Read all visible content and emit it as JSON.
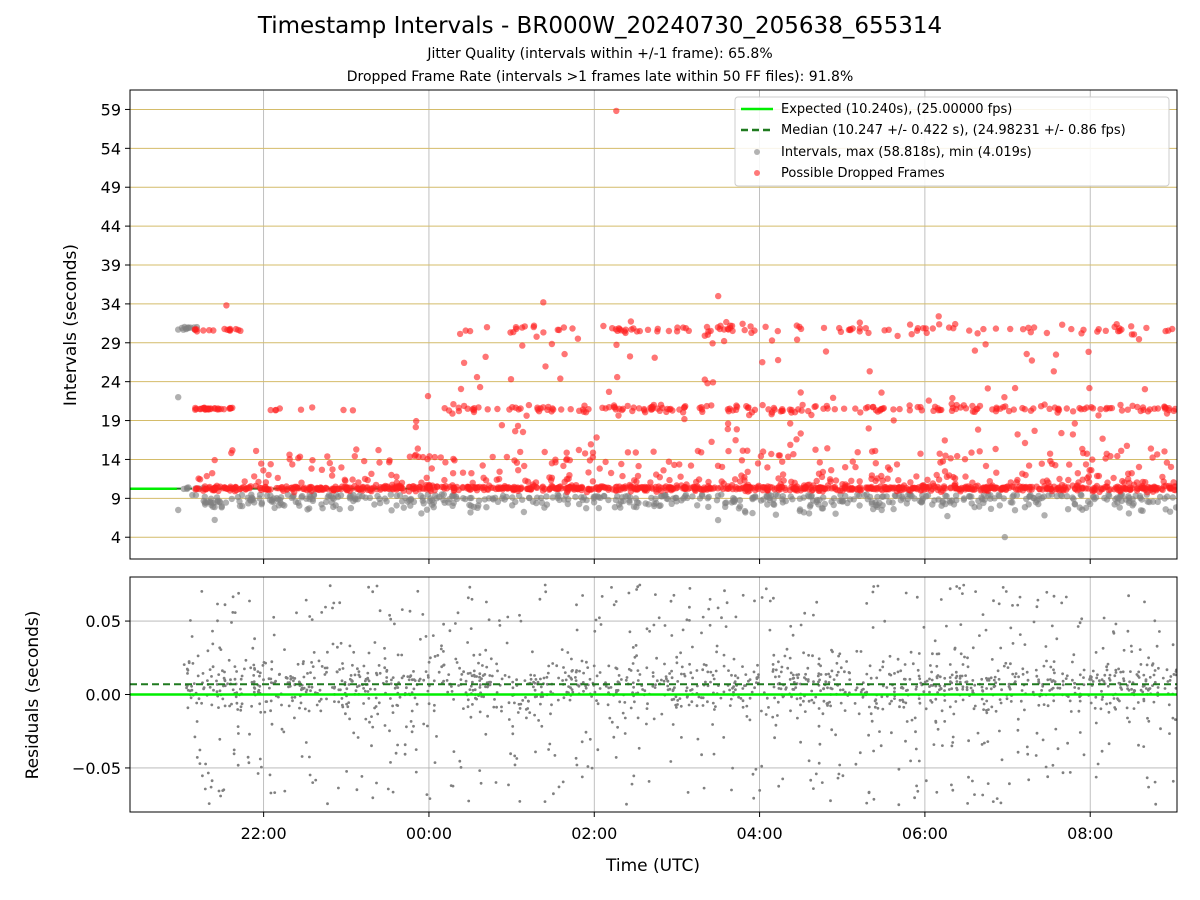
{
  "chart_data": [
    {
      "type": "scatter",
      "title": "Timestamp Intervals - BR000W_20240730_205638_655314",
      "subtitles": [
        "Jitter Quality (intervals within +/-1 frame): 65.8%",
        "Dropped Frame Rate (intervals >1 frames late within 50 FF files): 91.8%"
      ],
      "xlabel": "",
      "ylabel": "Intervals (seconds)",
      "x_ticks": [
        "22:00",
        "00:00",
        "02:00",
        "04:00",
        "06:00",
        "08:00"
      ],
      "x_range": [
        "20:23",
        "09:03"
      ],
      "y_ticks": [
        "4",
        "9",
        "14",
        "19",
        "24",
        "29",
        "34",
        "39",
        "44",
        "49",
        "54",
        "59"
      ],
      "ylim": [
        1.2,
        61.5
      ],
      "grid": true,
      "legend_position": "top-right",
      "legend": [
        "Expected (10.240s), (25.00000 fps)",
        "Median (10.247 +/- 0.422 s), (24.98231 +/- 0.86 fps)",
        "Intervals, max (58.818s), min (4.019s)",
        "Possible Dropped Frames"
      ],
      "series": [
        {
          "name": "Expected (10.240s), (25.00000 fps)",
          "kind": "hline",
          "value": 10.24,
          "color": "#00ee00"
        },
        {
          "name": "Median (10.247 +/- 0.422 s), (24.98231 +/- 0.86 fps)",
          "kind": "hline-dashed",
          "value": 10.247,
          "color": "#1f7a1f"
        },
        {
          "name": "Intervals, max (58.818s), min (4.019s)",
          "kind": "scatter",
          "color": "#808080",
          "max": 58.818,
          "min": 4.019,
          "typical_range": [
            7.0,
            10.5
          ],
          "early_cluster": [
            {
              "x": "20:58",
              "y": 30.7
            },
            {
              "x": "21:10",
              "y": 30.7
            },
            {
              "x": "20:58",
              "y": 22.0
            },
            {
              "x": "20:58",
              "y": 7.5
            }
          ],
          "min_point": {
            "x": "06:58",
            "y": 4.019
          }
        },
        {
          "name": "Possible Dropped Frames",
          "kind": "scatter",
          "color": "#ff2020",
          "levels": [
            10.24,
            20.5,
            30.7
          ],
          "max_point": {
            "x": "02:16",
            "y": 58.818
          },
          "notable": [
            {
              "x": "21:33",
              "y": 33.8
            },
            {
              "x": "01:23",
              "y": 34.2
            },
            {
              "x": "03:30",
              "y": 35.0
            },
            {
              "x": "04:02",
              "y": 26.5
            },
            {
              "x": "06:10",
              "y": 32.4
            }
          ]
        }
      ]
    },
    {
      "type": "scatter",
      "title": "",
      "xlabel": "Time (UTC)",
      "ylabel": "Residuals (seconds)",
      "x_ticks": [
        "22:00",
        "00:00",
        "02:00",
        "04:00",
        "06:00",
        "08:00"
      ],
      "y_ticks": [
        "0.05",
        "0.00",
        "−0.05"
      ],
      "ylim": [
        -0.08,
        0.08
      ],
      "grid": true,
      "series": [
        {
          "name": "",
          "kind": "hline",
          "value": 0.0,
          "color": "#00ee00"
        },
        {
          "name": "",
          "kind": "hline-dashed",
          "value": 0.007,
          "color": "#1f7a1f"
        },
        {
          "name": "",
          "kind": "scatter",
          "color": "#808080",
          "spread": [
            -0.08,
            0.08
          ],
          "dense_band": [
            -0.01,
            0.025
          ]
        }
      ]
    }
  ]
}
